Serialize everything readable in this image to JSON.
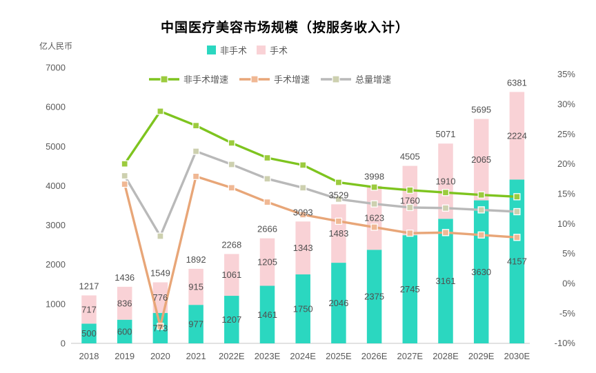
{
  "title": "中国医疗美容市场规模（按服务收入计）",
  "chart_data": {
    "type": "bar",
    "subtype": "stacked-bars-with-growth-lines",
    "grid": false,
    "legend_position": "top",
    "categories": [
      "2018",
      "2019",
      "2020",
      "2021",
      "2022E",
      "2023E",
      "2024E",
      "2025E",
      "2026E",
      "2027E",
      "2028E",
      "2029E",
      "2030E"
    ],
    "bar_series": [
      {
        "key": "non-surgical",
        "name": "非手术",
        "color": "#2BD7C0",
        "values": [
          500,
          600,
          773,
          977,
          1207,
          1461,
          1750,
          2046,
          2375,
          2745,
          3161,
          3630,
          4157
        ]
      },
      {
        "key": "surgical",
        "name": "手术",
        "color": "#F9D2D6",
        "values": [
          717,
          836,
          776,
          915,
          1061,
          1205,
          1343,
          1483,
          1623,
          1760,
          1910,
          2065,
          2224
        ]
      }
    ],
    "total_labels": [
      1217,
      1436,
      1549,
      1892,
      2268,
      2666,
      3093,
      3529,
      3998,
      4505,
      5071,
      5695,
      6381
    ],
    "line_series": [
      {
        "key": "non-surgical-growth",
        "name": "非手术增速",
        "color": "#7EC41F",
        "marker_color": "#9CCB3E",
        "values": [
          null,
          20.0,
          28.8,
          26.4,
          23.5,
          21.0,
          19.8,
          16.9,
          16.1,
          15.6,
          15.2,
          14.8,
          14.5
        ]
      },
      {
        "key": "surgical-growth",
        "name": "手术增速",
        "color": "#E8A678",
        "marker_color": "#F0B894",
        "values": [
          null,
          16.6,
          -7.2,
          17.9,
          16.0,
          13.6,
          11.5,
          10.4,
          9.4,
          8.4,
          8.5,
          8.1,
          7.7
        ]
      },
      {
        "key": "total-growth",
        "name": "总量增速",
        "color": "#B9B9B9",
        "marker_color": "#CDD0AF",
        "values": [
          null,
          18.0,
          7.9,
          22.1,
          19.9,
          17.5,
          16.0,
          14.1,
          13.3,
          12.7,
          12.6,
          12.3,
          12.0
        ]
      }
    ],
    "y_axis_left": {
      "unit": "亿人民币",
      "ticks": [
        0,
        1000,
        2000,
        3000,
        4000,
        5000,
        6000,
        7000
      ],
      "range": [
        0,
        7000
      ]
    },
    "y_axis_right": {
      "ticks": [
        "-10%",
        "-5%",
        "0%",
        "5%",
        "10%",
        "15%",
        "20%",
        "25%",
        "30%",
        "35%"
      ],
      "tick_values": [
        -10,
        -5,
        0,
        5,
        10,
        15,
        20,
        25,
        30,
        35
      ],
      "range": [
        -10,
        35
      ]
    }
  }
}
